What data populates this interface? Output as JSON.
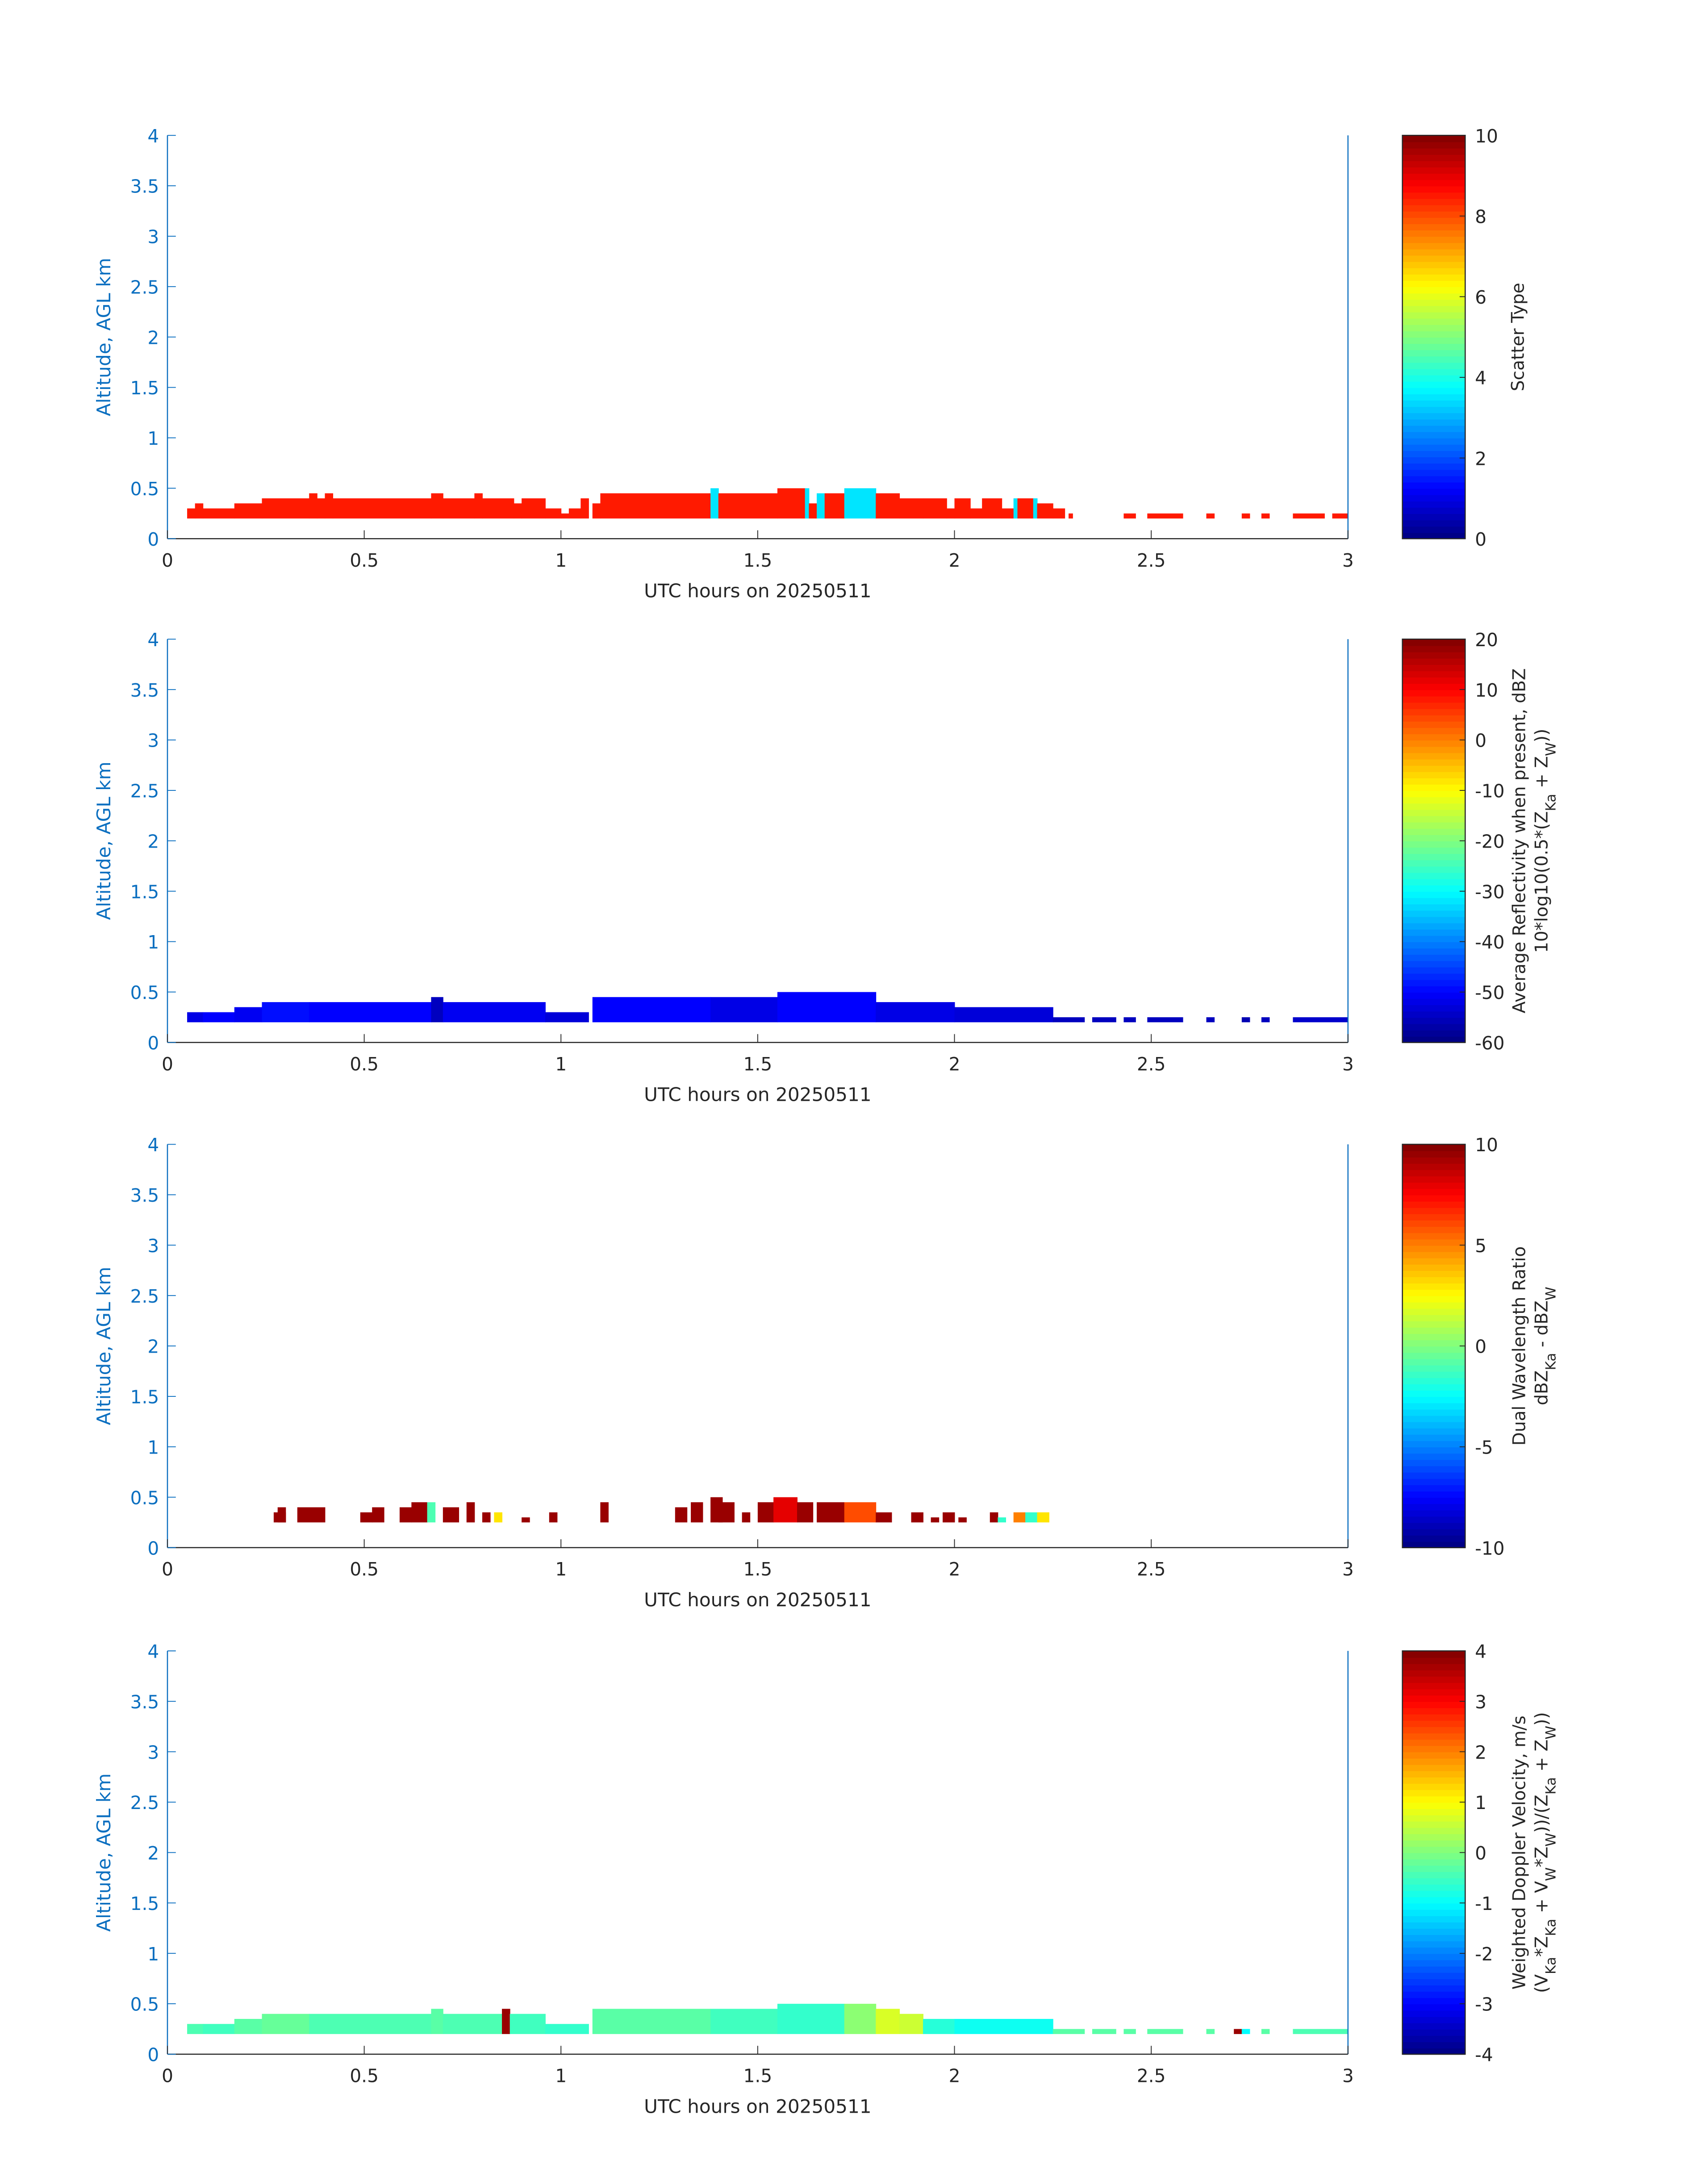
{
  "chart_data": [
    {
      "type": "heatmap",
      "xlabel": "UTC hours on 20250511",
      "ylabel": "Altitude, AGL km",
      "xlim": [
        0,
        3
      ],
      "ylim": [
        0,
        4
      ],
      "xticks": [
        "0",
        "0.5",
        "1",
        "1.5",
        "2",
        "2.5",
        "3"
      ],
      "yticks": [
        "0",
        "0.5",
        "1",
        "1.5",
        "2",
        "2.5",
        "3",
        "3.5",
        "4"
      ],
      "colorbar": {
        "range": [
          0,
          10
        ],
        "ticks": [
          "0",
          "2",
          "4",
          "6",
          "8",
          "10"
        ],
        "label_lines": [
          [
            {
              "t": "Scatter Type"
            }
          ]
        ]
      },
      "base_altitude_km": 0.2,
      "segments": [
        [
          0.05,
          0.07,
          0.3,
          8.5
        ],
        [
          0.07,
          0.09,
          0.35,
          8.5
        ],
        [
          0.09,
          0.17,
          0.3,
          8.5
        ],
        [
          0.17,
          0.24,
          0.35,
          8.5
        ],
        [
          0.24,
          0.36,
          0.4,
          8.5
        ],
        [
          0.36,
          0.38,
          0.45,
          8.5
        ],
        [
          0.38,
          0.4,
          0.4,
          8.5
        ],
        [
          0.4,
          0.42,
          0.45,
          8.5
        ],
        [
          0.42,
          0.67,
          0.4,
          8.5
        ],
        [
          0.67,
          0.7,
          0.45,
          8.5
        ],
        [
          0.7,
          0.78,
          0.4,
          8.5
        ],
        [
          0.78,
          0.8,
          0.45,
          8.5
        ],
        [
          0.8,
          0.88,
          0.4,
          8.5
        ],
        [
          0.88,
          0.9,
          0.35,
          8.5
        ],
        [
          0.9,
          0.96,
          0.4,
          8.5
        ],
        [
          0.96,
          1.0,
          0.3,
          8.5
        ],
        [
          1.0,
          1.02,
          0.25,
          8.5
        ],
        [
          1.02,
          1.05,
          0.3,
          8.5
        ],
        [
          1.05,
          1.07,
          0.4,
          8.5
        ],
        [
          1.08,
          1.1,
          0.35,
          8.5
        ],
        [
          1.1,
          1.15,
          0.45,
          8.5
        ],
        [
          1.15,
          1.38,
          0.45,
          8.5
        ],
        [
          1.38,
          1.4,
          0.5,
          3.5
        ],
        [
          1.4,
          1.55,
          0.45,
          8.5
        ],
        [
          1.55,
          1.62,
          0.5,
          8.5
        ],
        [
          1.62,
          1.63,
          0.5,
          3.5
        ],
        [
          1.63,
          1.65,
          0.35,
          8.5
        ],
        [
          1.65,
          1.67,
          0.45,
          3.5
        ],
        [
          1.67,
          1.72,
          0.45,
          8.5
        ],
        [
          1.72,
          1.8,
          0.5,
          3.5
        ],
        [
          1.8,
          1.86,
          0.45,
          8.5
        ],
        [
          1.86,
          1.92,
          0.4,
          8.5
        ],
        [
          1.92,
          1.98,
          0.4,
          8.5
        ],
        [
          1.98,
          2.0,
          0.3,
          8.5
        ],
        [
          2.0,
          2.04,
          0.4,
          8.5
        ],
        [
          2.04,
          2.07,
          0.3,
          8.5
        ],
        [
          2.07,
          2.12,
          0.4,
          8.5
        ],
        [
          2.12,
          2.15,
          0.3,
          8.5
        ],
        [
          2.15,
          2.16,
          0.4,
          3.5
        ],
        [
          2.16,
          2.2,
          0.4,
          8.5
        ],
        [
          2.2,
          2.21,
          0.4,
          3.5
        ],
        [
          2.21,
          2.25,
          0.35,
          8.5
        ],
        [
          2.25,
          2.28,
          0.3,
          8.5
        ],
        [
          2.29,
          2.3,
          0.25,
          8.5
        ],
        [
          2.43,
          2.46,
          0.25,
          8.5
        ],
        [
          2.49,
          2.58,
          0.25,
          8.5
        ],
        [
          2.64,
          2.66,
          0.25,
          8.5
        ],
        [
          2.73,
          2.75,
          0.25,
          8.5
        ],
        [
          2.78,
          2.8,
          0.25,
          8.5
        ],
        [
          2.86,
          2.94,
          0.25,
          8.5
        ],
        [
          2.96,
          3.0,
          0.25,
          8.5
        ]
      ]
    },
    {
      "type": "heatmap",
      "xlabel": "UTC hours on 20250511",
      "ylabel": "Altitude, AGL km",
      "xlim": [
        0,
        3
      ],
      "ylim": [
        0,
        4
      ],
      "xticks": [
        "0",
        "0.5",
        "1",
        "1.5",
        "2",
        "2.5",
        "3"
      ],
      "yticks": [
        "0",
        "0.5",
        "1",
        "1.5",
        "2",
        "2.5",
        "3",
        "3.5",
        "4"
      ],
      "colorbar": {
        "range": [
          -60,
          20
        ],
        "ticks": [
          "-60",
          "-50",
          "-40",
          "-30",
          "-20",
          "-10",
          "0",
          "10",
          "20"
        ],
        "label_lines": [
          [
            {
              "t": "Average Reflectivity when present, dBZ"
            }
          ],
          [
            {
              "t": "10*log10(0.5*(Z"
            },
            {
              "t": "Ka",
              "sub": true
            },
            {
              "t": " + Z"
            },
            {
              "t": "W",
              "sub": true
            },
            {
              "t": "))"
            }
          ]
        ]
      },
      "base_altitude_km": 0.2,
      "segments": [
        [
          0.05,
          0.09,
          0.3,
          -52
        ],
        [
          0.09,
          0.17,
          0.3,
          -50
        ],
        [
          0.17,
          0.24,
          0.35,
          -51
        ],
        [
          0.24,
          0.36,
          0.4,
          -49
        ],
        [
          0.36,
          0.67,
          0.4,
          -50
        ],
        [
          0.67,
          0.7,
          0.45,
          -55
        ],
        [
          0.7,
          0.96,
          0.4,
          -51
        ],
        [
          0.96,
          1.07,
          0.3,
          -53
        ],
        [
          1.08,
          1.38,
          0.45,
          -50
        ],
        [
          1.38,
          1.55,
          0.45,
          -52
        ],
        [
          1.55,
          1.8,
          0.5,
          -50
        ],
        [
          1.8,
          2.0,
          0.4,
          -52
        ],
        [
          2.0,
          2.25,
          0.35,
          -53
        ],
        [
          2.25,
          2.33,
          0.25,
          -55
        ],
        [
          2.35,
          2.41,
          0.25,
          -55
        ],
        [
          2.43,
          2.46,
          0.25,
          -55
        ],
        [
          2.49,
          2.58,
          0.25,
          -55
        ],
        [
          2.64,
          2.66,
          0.25,
          -55
        ],
        [
          2.73,
          2.75,
          0.25,
          -56
        ],
        [
          2.78,
          2.8,
          0.25,
          -55
        ],
        [
          2.86,
          3.0,
          0.25,
          -54
        ]
      ]
    },
    {
      "type": "heatmap",
      "xlabel": "UTC hours on 20250511",
      "ylabel": "Altitude, AGL km",
      "xlim": [
        0,
        3
      ],
      "ylim": [
        0,
        4
      ],
      "xticks": [
        "0",
        "0.5",
        "1",
        "1.5",
        "2",
        "2.5",
        "3"
      ],
      "yticks": [
        "0",
        "0.5",
        "1",
        "1.5",
        "2",
        "2.5",
        "3",
        "3.5",
        "4"
      ],
      "colorbar": {
        "range": [
          -10,
          10
        ],
        "ticks": [
          "-10",
          "-5",
          "0",
          "5",
          "10"
        ],
        "label_lines": [
          [
            {
              "t": "Dual Wavelength Ratio"
            }
          ],
          [
            {
              "t": "dBZ"
            },
            {
              "t": "Ka",
              "sub": true
            },
            {
              "t": " - dBZ"
            },
            {
              "t": "W",
              "sub": true
            }
          ]
        ]
      },
      "base_altitude_km": 0.25,
      "segments": [
        [
          0.27,
          0.3,
          0.35,
          9.5
        ],
        [
          0.28,
          0.3,
          0.4,
          9.5
        ],
        [
          0.33,
          0.4,
          0.4,
          9.5
        ],
        [
          0.49,
          0.52,
          0.35,
          9.5
        ],
        [
          0.52,
          0.55,
          0.4,
          9.5
        ],
        [
          0.59,
          0.62,
          0.4,
          9.5
        ],
        [
          0.62,
          0.66,
          0.45,
          9.5
        ],
        [
          0.66,
          0.68,
          0.45,
          -1
        ],
        [
          0.7,
          0.74,
          0.4,
          9.5
        ],
        [
          0.76,
          0.78,
          0.45,
          9.5
        ],
        [
          0.8,
          0.82,
          0.35,
          9.5
        ],
        [
          0.83,
          0.85,
          0.35,
          3
        ],
        [
          0.9,
          0.92,
          0.3,
          9.5
        ],
        [
          0.97,
          0.99,
          0.35,
          9.5
        ],
        [
          1.1,
          1.12,
          0.45,
          9.5
        ],
        [
          1.29,
          1.32,
          0.4,
          9.5
        ],
        [
          1.33,
          1.36,
          0.45,
          9.5
        ],
        [
          1.38,
          1.41,
          0.5,
          9.5
        ],
        [
          1.4,
          1.44,
          0.45,
          9.5
        ],
        [
          1.46,
          1.48,
          0.35,
          9.5
        ],
        [
          1.5,
          1.54,
          0.45,
          9.5
        ],
        [
          1.54,
          1.6,
          0.5,
          8
        ],
        [
          1.6,
          1.64,
          0.45,
          9.5
        ],
        [
          1.65,
          1.72,
          0.45,
          9.5
        ],
        [
          1.72,
          1.8,
          0.45,
          6
        ],
        [
          1.8,
          1.84,
          0.35,
          9.5
        ],
        [
          1.89,
          1.92,
          0.35,
          9.5
        ],
        [
          1.94,
          1.96,
          0.3,
          9.5
        ],
        [
          1.97,
          2.0,
          0.35,
          9.5
        ],
        [
          2.01,
          2.03,
          0.3,
          9.5
        ],
        [
          2.09,
          2.11,
          0.35,
          9.5
        ],
        [
          2.11,
          2.13,
          0.3,
          -1.5
        ],
        [
          2.15,
          2.18,
          0.35,
          5
        ],
        [
          2.18,
          2.21,
          0.35,
          -1.5
        ],
        [
          2.21,
          2.24,
          0.35,
          3
        ]
      ]
    },
    {
      "type": "heatmap",
      "xlabel": "UTC hours on 20250511",
      "ylabel": "Altitude, AGL km",
      "xlim": [
        0,
        3
      ],
      "ylim": [
        0,
        4
      ],
      "xticks": [
        "0",
        "0.5",
        "1",
        "1.5",
        "2",
        "2.5",
        "3"
      ],
      "yticks": [
        "0",
        "0.5",
        "1",
        "1.5",
        "2",
        "2.5",
        "3",
        "3.5",
        "4"
      ],
      "colorbar": {
        "range": [
          -4,
          4
        ],
        "ticks": [
          "-4",
          "-3",
          "-2",
          "-1",
          "0",
          "1",
          "2",
          "3",
          "4"
        ],
        "label_lines": [
          [
            {
              "t": "Weighted Doppler Velocity, m/s"
            }
          ],
          [
            {
              "t": "(V"
            },
            {
              "t": "Ka",
              "sub": true
            },
            {
              "t": "*Z"
            },
            {
              "t": "Ka",
              "sub": true
            },
            {
              "t": " + V"
            },
            {
              "t": "W",
              "sub": true
            },
            {
              "t": "*Z"
            },
            {
              "t": "W",
              "sub": true
            },
            {
              "t": "))/(Z"
            },
            {
              "t": "Ka",
              "sub": true
            },
            {
              "t": " + Z"
            },
            {
              "t": "W",
              "sub": true
            },
            {
              "t": "))"
            }
          ]
        ]
      },
      "base_altitude_km": 0.2,
      "segments": [
        [
          0.05,
          0.09,
          0.3,
          -0.4
        ],
        [
          0.09,
          0.17,
          0.3,
          -0.5
        ],
        [
          0.17,
          0.24,
          0.35,
          -0.3
        ],
        [
          0.24,
          0.36,
          0.4,
          -0.2
        ],
        [
          0.36,
          0.67,
          0.4,
          -0.4
        ],
        [
          0.67,
          0.7,
          0.45,
          -0.3
        ],
        [
          0.7,
          0.85,
          0.4,
          -0.4
        ],
        [
          0.85,
          0.87,
          0.45,
          3.8
        ],
        [
          0.87,
          0.96,
          0.4,
          -0.5
        ],
        [
          0.96,
          1.07,
          0.3,
          -0.6
        ],
        [
          1.08,
          1.38,
          0.45,
          -0.3
        ],
        [
          1.38,
          1.55,
          0.45,
          -0.5
        ],
        [
          1.55,
          1.72,
          0.5,
          -0.6
        ],
        [
          1.72,
          1.8,
          0.5,
          0.1
        ],
        [
          1.8,
          1.86,
          0.45,
          0.7
        ],
        [
          1.86,
          1.92,
          0.4,
          0.6
        ],
        [
          1.92,
          2.0,
          0.35,
          -0.7
        ],
        [
          2.0,
          2.25,
          0.35,
          -0.9
        ],
        [
          2.25,
          2.33,
          0.25,
          -0.3
        ],
        [
          2.35,
          2.41,
          0.25,
          -0.3
        ],
        [
          2.43,
          2.46,
          0.25,
          -0.3
        ],
        [
          2.49,
          2.58,
          0.25,
          -0.3
        ],
        [
          2.64,
          2.66,
          0.25,
          -0.3
        ],
        [
          2.71,
          2.73,
          0.25,
          3.8
        ],
        [
          2.73,
          2.75,
          0.25,
          -1
        ],
        [
          2.78,
          2.8,
          0.25,
          -0.3
        ],
        [
          2.86,
          3.0,
          0.25,
          -0.4
        ]
      ]
    }
  ]
}
